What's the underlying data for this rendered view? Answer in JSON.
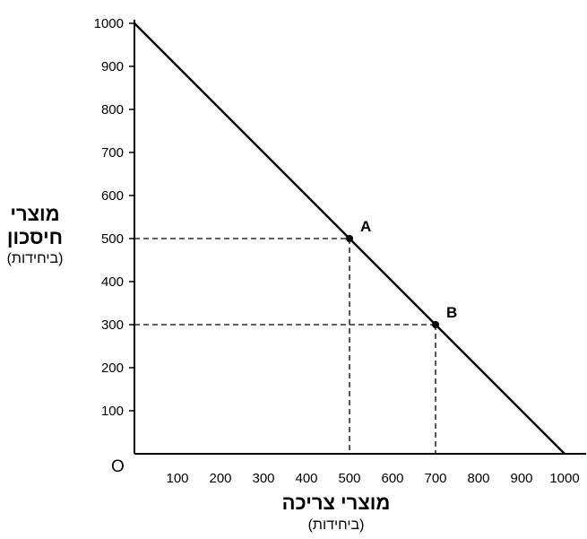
{
  "chart_data": {
    "type": "line",
    "ylabel_line1": "מוצרי",
    "ylabel_line2": "חיסכון",
    "ylabel_unit": "(ביחידות)",
    "xlabel": "מוצרי צריכה",
    "xlabel_unit": "(ביחידות)",
    "origin_label": "O",
    "xlim": [
      0,
      1000
    ],
    "ylim": [
      0,
      1000
    ],
    "x_ticks": [
      100,
      200,
      300,
      400,
      500,
      600,
      700,
      800,
      900,
      1000
    ],
    "y_ticks": [
      100,
      200,
      300,
      400,
      500,
      600,
      700,
      800,
      900,
      1000
    ],
    "series": [
      {
        "x": [
          0,
          1000
        ],
        "y": [
          1000,
          0
        ]
      }
    ],
    "points": [
      {
        "label": "A",
        "x": 500,
        "y": 500
      },
      {
        "label": "B",
        "x": 700,
        "y": 300
      }
    ],
    "grid": false
  }
}
